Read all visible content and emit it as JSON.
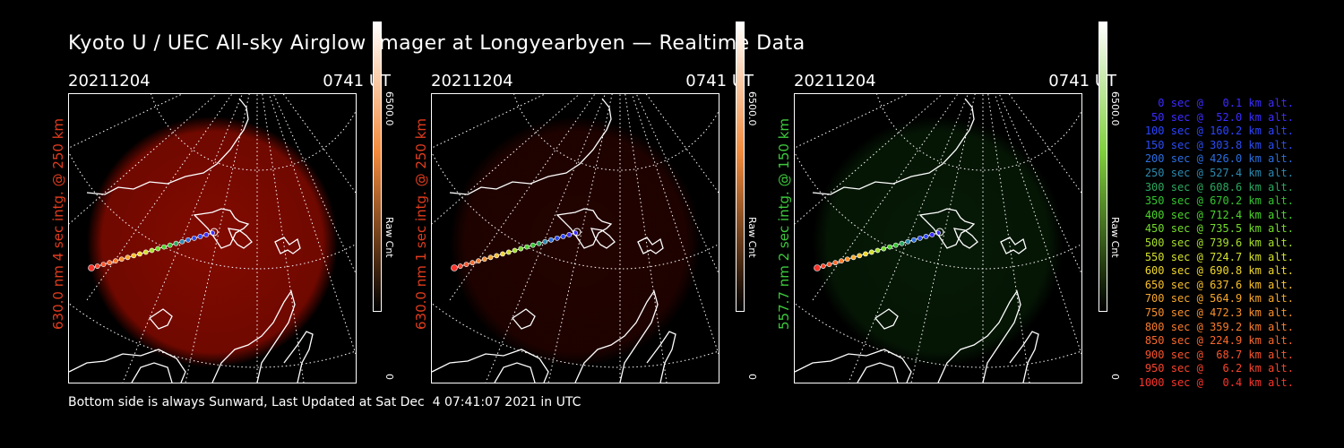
{
  "title": "Kyoto U / UEC All-sky Airglow Imager at Longyearbyen — Realtime Data",
  "panels": [
    {
      "date": "20211204",
      "time": "0741 UT",
      "label": "630.0 nm 4 sec intg. @ 250 km",
      "label_color": "#e03c1e",
      "cbar_max": "6500.0",
      "cbar_unit": "Raw Cnt",
      "cbar_min": "0",
      "glow": "#9a0c00",
      "glow_opacity": 0.85,
      "cbar_top": "#ffffff",
      "cbar_mid": "#f28a3c",
      "cbar_bot": "#000000"
    },
    {
      "date": "20211204",
      "time": "0741 UT",
      "label": "630.0 nm 1 sec intg. @ 250 km",
      "label_color": "#e03c1e",
      "cbar_max": "6500.0",
      "cbar_unit": "Raw Cnt",
      "cbar_min": "0",
      "glow": "#3a0500",
      "glow_opacity": 0.6,
      "cbar_top": "#ffffff",
      "cbar_mid": "#f28a3c",
      "cbar_bot": "#000000"
    },
    {
      "date": "20211204",
      "time": "0741 UT",
      "label": "557.7 nm 2 sec intg. @ 150 km",
      "label_color": "#3cc83c",
      "cbar_max": "6500.0",
      "cbar_unit": "Raw Cnt",
      "cbar_min": "0",
      "glow": "#0a2a0a",
      "glow_opacity": 0.6,
      "cbar_top": "#ffffff",
      "cbar_mid": "#7fcf3c",
      "cbar_bot": "#000000"
    }
  ],
  "legend": [
    {
      "text": "0 sec @   0.1 km alt.",
      "color": "#3c2cff"
    },
    {
      "text": "50 sec @  52.0 km alt.",
      "color": "#3c2cff"
    },
    {
      "text": "100 sec @ 160.2 km alt.",
      "color": "#2c44ff"
    },
    {
      "text": "150 sec @ 303.8 km alt.",
      "color": "#2c4cf0"
    },
    {
      "text": "200 sec @ 426.0 km alt.",
      "color": "#2c6ee0"
    },
    {
      "text": "250 sec @ 527.4 km alt.",
      "color": "#2c8ab0"
    },
    {
      "text": "300 sec @ 608.6 km alt.",
      "color": "#2ca860"
    },
    {
      "text": "350 sec @ 670.2 km alt.",
      "color": "#34c430"
    },
    {
      "text": "400 sec @ 712.4 km alt.",
      "color": "#4cd42c"
    },
    {
      "text": "450 sec @ 735.5 km alt.",
      "color": "#74dc2c"
    },
    {
      "text": "500 sec @ 739.6 km alt.",
      "color": "#a8e02c"
    },
    {
      "text": "550 sec @ 724.7 km alt.",
      "color": "#d4e02c"
    },
    {
      "text": "600 sec @ 690.8 km alt.",
      "color": "#f0d82c"
    },
    {
      "text": "650 sec @ 637.6 km alt.",
      "color": "#f8c02c"
    },
    {
      "text": "700 sec @ 564.9 km alt.",
      "color": "#f8a82c"
    },
    {
      "text": "750 sec @ 472.3 km alt.",
      "color": "#f8902c"
    },
    {
      "text": "800 sec @ 359.2 km alt.",
      "color": "#f87c2c"
    },
    {
      "text": "850 sec @ 224.9 km alt.",
      "color": "#f8682c"
    },
    {
      "text": "900 sec @  68.7 km alt.",
      "color": "#f8542c"
    },
    {
      "text": "950 sec @   6.2 km alt.",
      "color": "#f8442c"
    },
    {
      "text": "1000 sec @   0.4 km alt.",
      "color": "#f8342c"
    }
  ],
  "footer": "Bottom side is always Sunward, Last Updated at Sat Dec  4 07:41:07 2021 in UTC"
}
